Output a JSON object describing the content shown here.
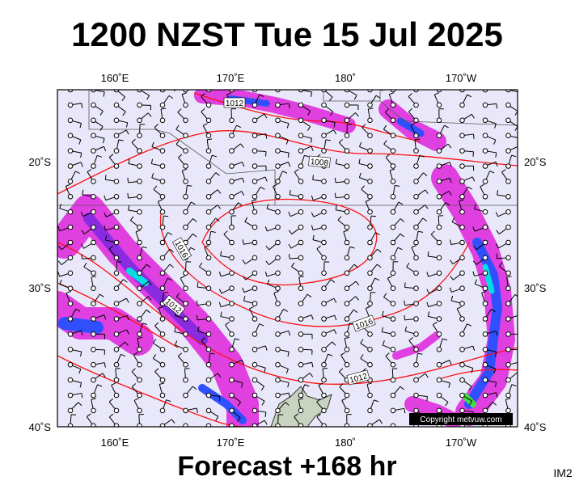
{
  "header": {
    "title": "1200 NZST Tue 15 Jul 2025"
  },
  "map": {
    "top_labels": [
      "160˚E",
      "170˚E",
      "180˚",
      "170˚W"
    ],
    "bottom_labels": [
      "160˚E",
      "170˚E",
      "180˚",
      "170˚W"
    ],
    "left_labels": [
      "20˚S",
      "30˚S",
      "40˚S"
    ],
    "right_labels": [
      "20˚S",
      "30˚S",
      "40˚S"
    ],
    "isobar_labels": [
      "1012",
      "1008",
      "1016",
      "1012",
      "1016",
      "1012"
    ],
    "copyright": "Copyright metvuw.com"
  },
  "footer": {
    "forecast": "Forecast +168 hr",
    "code": "IM2"
  }
}
